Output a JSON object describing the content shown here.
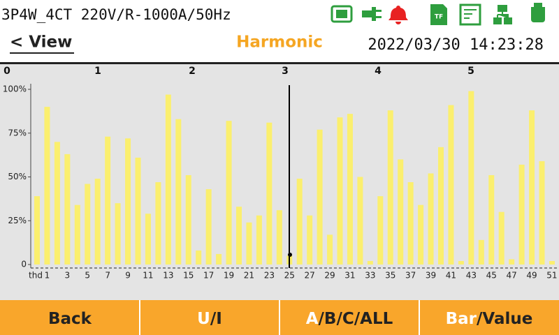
{
  "header": {
    "status": "3P4W_4CT 220V/R-1000A/50Hz",
    "back": "< View",
    "title": "Harmonic",
    "datetime": "2022/03/30 14:23:28"
  },
  "pages": [
    "0",
    "1",
    "2",
    "3",
    "4",
    "5"
  ],
  "chart_data": {
    "type": "bar",
    "color": "#fbef6e",
    "categories": [
      "thd",
      "1",
      null,
      "3",
      null,
      "5",
      null,
      "7",
      null,
      "9",
      null,
      "11",
      null,
      "13",
      null,
      "15",
      null,
      "17",
      null,
      "19",
      null,
      "21",
      null,
      "23",
      null,
      "25",
      null,
      "27",
      null,
      "29",
      null,
      "31",
      null,
      "33",
      null,
      "35",
      null,
      "37",
      null,
      "39",
      null,
      "41",
      null,
      "43",
      null,
      "45",
      null,
      "47",
      null,
      "49",
      null,
      "51"
    ],
    "values": [
      39,
      90,
      70,
      63,
      34,
      46,
      49,
      73,
      35,
      72,
      61,
      29,
      47,
      97,
      83,
      51,
      8,
      43,
      6,
      82,
      33,
      24,
      28,
      81,
      31,
      5,
      49,
      28,
      77,
      17,
      84,
      86,
      50,
      2,
      39,
      88,
      60,
      47,
      34,
      52,
      67,
      91,
      2,
      99,
      14,
      51,
      30,
      3,
      57,
      88,
      59,
      2
    ],
    "ylim": [
      0,
      100
    ],
    "yticks": [
      0,
      {
        "value": 25,
        "label": "25%"
      },
      {
        "value": 50,
        "label": "50%"
      },
      {
        "value": 75,
        "label": "75%"
      },
      {
        "value": 100,
        "label": "100%"
      }
    ]
  },
  "footer": {
    "buttons": [
      [
        "Back"
      ],
      [
        "U",
        "/I"
      ],
      [
        "A",
        "/B/C/ALL"
      ],
      [
        "Bar",
        "/Value"
      ]
    ]
  }
}
